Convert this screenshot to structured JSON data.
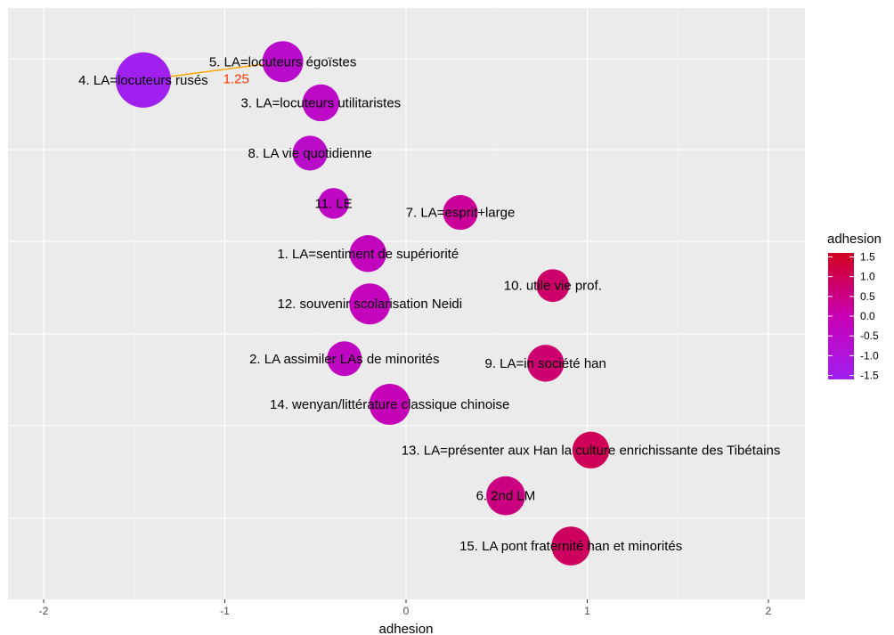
{
  "chart_data": {
    "type": "scatter",
    "xlabel": "adhesion",
    "xlim": [
      -2.2,
      2.2
    ],
    "xticks": [
      -2,
      -1,
      0,
      1,
      2
    ],
    "xtick_labels": [
      "-2",
      "-1",
      "0",
      "1",
      "2"
    ],
    "grid": true,
    "legend": {
      "title": "adhesion",
      "position": "right",
      "range": [
        -1.6,
        1.6
      ],
      "ticks": [
        1.5,
        1.0,
        0.5,
        0.0,
        -0.5,
        -1.0,
        -1.5
      ],
      "tick_labels": [
        "1.5",
        "1.0",
        "0.5",
        "0.0",
        "-0.5",
        "-1.0",
        "-1.5"
      ],
      "color_low": "#a020f0",
      "color_mid": "#c800b4",
      "color_high": "#d1001f"
    },
    "points": [
      {
        "label": "5. LA=locuteurs égoïstes",
        "x": -0.68,
        "rank": 1,
        "adhesion": -0.6,
        "size": 1.0
      },
      {
        "label": "4. LA=locuteurs rusés",
        "x": -1.45,
        "rank": 1.4,
        "adhesion": -1.6,
        "size": 1.35
      },
      {
        "label": "3. LA=locuteurs utilitaristes",
        "x": -0.47,
        "rank": 1.9,
        "adhesion": -0.5,
        "size": 0.9
      },
      {
        "label": "8. LA vie quotidienne",
        "x": -0.53,
        "rank": 3,
        "adhesion": -0.55,
        "size": 0.85
      },
      {
        "label": "11. LE",
        "x": -0.4,
        "rank": 4.1,
        "adhesion": -0.4,
        "size": 0.75
      },
      {
        "label": "7. LA=esprit+large",
        "x": 0.3,
        "rank": 4.3,
        "adhesion": 0.3,
        "size": 0.85
      },
      {
        "label": "1. LA=sentiment de supériorité",
        "x": -0.21,
        "rank": 5.2,
        "adhesion": -0.25,
        "size": 0.9
      },
      {
        "label": "10. utile vie prof.",
        "x": 0.81,
        "rank": 5.9,
        "adhesion": 0.8,
        "size": 0.8
      },
      {
        "label": "12. souvenir scolarisation Neidi",
        "x": -0.2,
        "rank": 6.3,
        "adhesion": -0.2,
        "size": 1.0
      },
      {
        "label": "2. LA assimiler LAs de minorités",
        "x": -0.34,
        "rank": 7.5,
        "adhesion": -0.35,
        "size": 0.85
      },
      {
        "label": "9. LA=in société han",
        "x": 0.77,
        "rank": 7.6,
        "adhesion": 0.75,
        "size": 0.9
      },
      {
        "label": "14. wenyan/littérature classique chinoise",
        "x": -0.09,
        "rank": 8.5,
        "adhesion": -0.1,
        "size": 1.0
      },
      {
        "label": "13. LA=présenter aux Han la culture enrichissante des Tibétains",
        "x": 1.02,
        "rank": 9.5,
        "adhesion": 1.0,
        "size": 0.9
      },
      {
        "label": "6. 2nd LM",
        "x": 0.55,
        "rank": 10.5,
        "adhesion": 0.55,
        "size": 0.95
      },
      {
        "label": "15. LA pont fraternité han et minorités",
        "x": 0.91,
        "rank": 11.6,
        "adhesion": 0.9,
        "size": 0.95
      }
    ],
    "annotation": {
      "from": 1,
      "to": 0,
      "text": "1.25",
      "color": "#ffa500",
      "text_color": "#ff3300"
    }
  }
}
